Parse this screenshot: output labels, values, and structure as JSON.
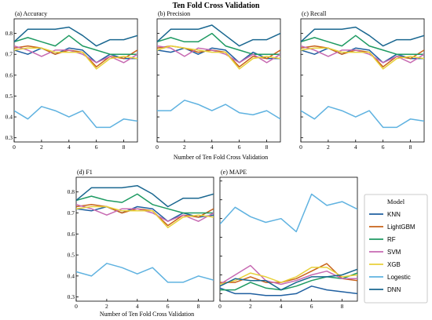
{
  "figure": {
    "title": "Ten Fold Cross Validation",
    "legend_title": "Model"
  },
  "colors": {
    "KNN": "#1f5fa0",
    "LightGBM": "#c8621a",
    "RF": "#1e9a62",
    "SVM": "#c76ab2",
    "XGB": "#e8d13a",
    "Logestic": "#5fb2e0",
    "DNN": "#1a6790"
  },
  "chart_data": [
    {
      "type": "line",
      "title": "(a) Accuracy",
      "xlabel": "",
      "ylabel": "",
      "x": [
        0,
        1,
        2,
        3,
        4,
        5,
        6,
        7,
        8,
        9
      ],
      "xlim": [
        0,
        9
      ],
      "ylim": [
        0.28,
        0.87
      ],
      "xticks": [
        0,
        2,
        4,
        6,
        8
      ],
      "yticks": [
        0.3,
        0.4,
        0.5,
        0.6,
        0.7,
        0.8
      ],
      "ytick_labels": [
        "0.3",
        "0.4",
        "0.5",
        "0.6",
        "0.7",
        "0.8"
      ],
      "show_yticks": true,
      "series": [
        {
          "name": "KNN",
          "values": [
            0.72,
            0.7,
            0.73,
            0.7,
            0.73,
            0.72,
            0.66,
            0.7,
            0.68,
            0.68
          ]
        },
        {
          "name": "LightGBM",
          "values": [
            0.73,
            0.74,
            0.73,
            0.7,
            0.72,
            0.71,
            0.64,
            0.69,
            0.68,
            0.72
          ]
        },
        {
          "name": "RF",
          "values": [
            0.76,
            0.78,
            0.76,
            0.74,
            0.79,
            0.74,
            0.72,
            0.7,
            0.7,
            0.7
          ]
        },
        {
          "name": "SVM",
          "values": [
            0.74,
            0.72,
            0.69,
            0.72,
            0.72,
            0.7,
            0.66,
            0.69,
            0.66,
            0.7
          ]
        },
        {
          "name": "XGB",
          "values": [
            0.72,
            0.73,
            0.73,
            0.71,
            0.71,
            0.71,
            0.63,
            0.68,
            0.69,
            0.68
          ]
        },
        {
          "name": "Logestic",
          "values": [
            0.43,
            0.39,
            0.45,
            0.43,
            0.4,
            0.43,
            0.35,
            0.35,
            0.39,
            0.38
          ]
        },
        {
          "name": "DNN",
          "values": [
            0.76,
            0.82,
            0.82,
            0.82,
            0.83,
            0.79,
            0.74,
            0.77,
            0.77,
            0.79
          ]
        }
      ]
    },
    {
      "type": "line",
      "title": "(b) Precision",
      "xlabel": "",
      "ylabel": "",
      "x": [
        0,
        1,
        2,
        3,
        4,
        5,
        6,
        7,
        8,
        9
      ],
      "xlim": [
        0,
        9
      ],
      "ylim": [
        0.28,
        0.87
      ],
      "xticks": [
        0,
        2,
        4,
        6,
        8
      ],
      "yticks": [
        0.3,
        0.4,
        0.5,
        0.6,
        0.7,
        0.8
      ],
      "ytick_labels": [
        "",
        "",
        "",
        "",
        "",
        ""
      ],
      "show_yticks": false,
      "series": [
        {
          "name": "KNN",
          "values": [
            0.72,
            0.71,
            0.73,
            0.7,
            0.73,
            0.72,
            0.66,
            0.71,
            0.68,
            0.68
          ]
        },
        {
          "name": "LightGBM",
          "values": [
            0.73,
            0.74,
            0.73,
            0.71,
            0.72,
            0.71,
            0.64,
            0.69,
            0.68,
            0.72
          ]
        },
        {
          "name": "RF",
          "values": [
            0.76,
            0.78,
            0.76,
            0.76,
            0.8,
            0.74,
            0.72,
            0.7,
            0.7,
            0.7
          ]
        },
        {
          "name": "SVM",
          "values": [
            0.74,
            0.73,
            0.69,
            0.73,
            0.72,
            0.7,
            0.66,
            0.7,
            0.66,
            0.7
          ]
        },
        {
          "name": "XGB",
          "values": [
            0.72,
            0.74,
            0.73,
            0.72,
            0.71,
            0.71,
            0.63,
            0.68,
            0.69,
            0.68
          ]
        },
        {
          "name": "Logestic",
          "values": [
            0.43,
            0.43,
            0.48,
            0.46,
            0.43,
            0.46,
            0.42,
            0.41,
            0.43,
            0.39
          ]
        },
        {
          "name": "DNN",
          "values": [
            0.76,
            0.82,
            0.82,
            0.82,
            0.84,
            0.79,
            0.74,
            0.77,
            0.77,
            0.8
          ]
        }
      ]
    },
    {
      "type": "line",
      "title": "(c) Recall",
      "xlabel": "",
      "ylabel": "",
      "x": [
        0,
        1,
        2,
        3,
        4,
        5,
        6,
        7,
        8,
        9
      ],
      "xlim": [
        0,
        9
      ],
      "ylim": [
        0.28,
        0.87
      ],
      "xticks": [
        0,
        2,
        4,
        6,
        8
      ],
      "yticks": [
        0.3,
        0.4,
        0.5,
        0.6,
        0.7,
        0.8
      ],
      "ytick_labels": [
        "",
        "",
        "",
        "",
        "",
        ""
      ],
      "show_yticks": false,
      "series": [
        {
          "name": "KNN",
          "values": [
            0.72,
            0.7,
            0.73,
            0.7,
            0.73,
            0.72,
            0.66,
            0.7,
            0.68,
            0.68
          ]
        },
        {
          "name": "LightGBM",
          "values": [
            0.73,
            0.74,
            0.73,
            0.7,
            0.72,
            0.71,
            0.64,
            0.69,
            0.68,
            0.72
          ]
        },
        {
          "name": "RF",
          "values": [
            0.76,
            0.78,
            0.76,
            0.74,
            0.79,
            0.74,
            0.72,
            0.7,
            0.7,
            0.7
          ]
        },
        {
          "name": "SVM",
          "values": [
            0.74,
            0.72,
            0.69,
            0.72,
            0.72,
            0.7,
            0.66,
            0.69,
            0.66,
            0.7
          ]
        },
        {
          "name": "XGB",
          "values": [
            0.72,
            0.73,
            0.73,
            0.71,
            0.71,
            0.71,
            0.63,
            0.68,
            0.69,
            0.68
          ]
        },
        {
          "name": "Logestic",
          "values": [
            0.43,
            0.39,
            0.45,
            0.43,
            0.4,
            0.43,
            0.35,
            0.35,
            0.39,
            0.38
          ]
        },
        {
          "name": "DNN",
          "values": [
            0.76,
            0.82,
            0.82,
            0.82,
            0.83,
            0.79,
            0.74,
            0.77,
            0.77,
            0.79
          ]
        }
      ]
    },
    {
      "type": "line",
      "title": "(d) F1",
      "xlabel": "",
      "ylabel": "",
      "x": [
        0,
        1,
        2,
        3,
        4,
        5,
        6,
        7,
        8,
        9
      ],
      "xlim": [
        0,
        9
      ],
      "ylim": [
        0.28,
        0.87
      ],
      "xticks": [
        0,
        2,
        4,
        6,
        8
      ],
      "yticks": [
        0.3,
        0.4,
        0.5,
        0.6,
        0.7,
        0.8
      ],
      "ytick_labels": [
        "0.3",
        "0.4",
        "0.5",
        "0.6",
        "0.7",
        "0.8"
      ],
      "show_yticks": true,
      "series": [
        {
          "name": "KNN",
          "values": [
            0.72,
            0.71,
            0.73,
            0.7,
            0.73,
            0.72,
            0.66,
            0.7,
            0.68,
            0.69
          ]
        },
        {
          "name": "LightGBM",
          "values": [
            0.73,
            0.74,
            0.73,
            0.7,
            0.72,
            0.71,
            0.64,
            0.69,
            0.68,
            0.72
          ]
        },
        {
          "name": "RF",
          "values": [
            0.76,
            0.78,
            0.76,
            0.75,
            0.79,
            0.74,
            0.72,
            0.7,
            0.7,
            0.7
          ]
        },
        {
          "name": "SVM",
          "values": [
            0.74,
            0.72,
            0.69,
            0.72,
            0.72,
            0.7,
            0.66,
            0.69,
            0.66,
            0.7
          ]
        },
        {
          "name": "XGB",
          "values": [
            0.72,
            0.73,
            0.73,
            0.71,
            0.71,
            0.71,
            0.63,
            0.68,
            0.69,
            0.68
          ]
        },
        {
          "name": "Logestic",
          "values": [
            0.42,
            0.4,
            0.46,
            0.44,
            0.41,
            0.44,
            0.37,
            0.37,
            0.4,
            0.38
          ]
        },
        {
          "name": "DNN",
          "values": [
            0.76,
            0.82,
            0.82,
            0.82,
            0.83,
            0.79,
            0.73,
            0.77,
            0.77,
            0.79
          ]
        }
      ]
    },
    {
      "type": "line",
      "title": "(e) MAPE",
      "xlabel": "",
      "ylabel": "",
      "x": [
        0,
        1,
        2,
        3,
        4,
        5,
        6,
        7,
        8,
        9
      ],
      "xlim": [
        0,
        9
      ],
      "ylim": [
        0.06,
        0.72
      ],
      "xticks": [
        0,
        2,
        4,
        6,
        8
      ],
      "yticks": [
        0.1,
        0.2,
        0.3,
        0.4,
        0.5,
        0.6,
        0.7
      ],
      "ytick_labels": [
        "",
        "",
        "",
        "",
        "",
        "",
        ""
      ],
      "show_yticks": false,
      "series": [
        {
          "name": "KNN",
          "values": [
            0.13,
            0.1,
            0.1,
            0.09,
            0.09,
            0.1,
            0.14,
            0.12,
            0.11,
            0.1
          ]
        },
        {
          "name": "LightGBM",
          "values": [
            0.16,
            0.16,
            0.19,
            0.16,
            0.16,
            0.18,
            0.22,
            0.26,
            0.18,
            0.17
          ]
        },
        {
          "name": "RF",
          "values": [
            0.12,
            0.12,
            0.16,
            0.13,
            0.12,
            0.14,
            0.17,
            0.19,
            0.18,
            0.21
          ]
        },
        {
          "name": "SVM",
          "values": [
            0.15,
            0.2,
            0.25,
            0.17,
            0.15,
            0.17,
            0.2,
            0.22,
            0.18,
            0.18
          ]
        },
        {
          "name": "XGB",
          "values": [
            0.15,
            0.17,
            0.21,
            0.19,
            0.16,
            0.19,
            0.24,
            0.24,
            0.19,
            0.2
          ]
        },
        {
          "name": "Logestic",
          "values": [
            0.47,
            0.56,
            0.51,
            0.48,
            0.5,
            0.43,
            0.63,
            0.57,
            0.59,
            0.55
          ]
        },
        {
          "name": "DNN",
          "values": [
            0.14,
            0.18,
            0.17,
            0.17,
            0.12,
            0.16,
            0.19,
            0.19,
            0.2,
            0.23
          ]
        }
      ]
    }
  ]
}
